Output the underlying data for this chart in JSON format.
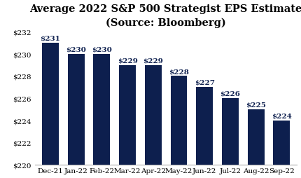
{
  "categories": [
    "Dec-21",
    "Jan-22",
    "Feb-22",
    "Mar-22",
    "Apr-22",
    "May-22",
    "Jun-22",
    "Jul-22",
    "Aug-22",
    "Sep-22"
  ],
  "values": [
    231,
    230,
    230,
    229,
    229,
    228,
    227,
    226,
    225,
    224
  ],
  "bar_color": "#0d1f4e",
  "title_line1": "Average 2022 S&P 500 Strategist EPS Estimate",
  "title_line2": "(Source: Bloomberg)",
  "ylim": [
    220,
    232
  ],
  "yticks": [
    220,
    222,
    224,
    226,
    228,
    230,
    232
  ],
  "bar_label_fontsize": 7.5,
  "title_fontsize": 10.5,
  "tick_label_fontsize": 7.5,
  "background_color": "#ffffff",
  "bar_width": 0.65
}
